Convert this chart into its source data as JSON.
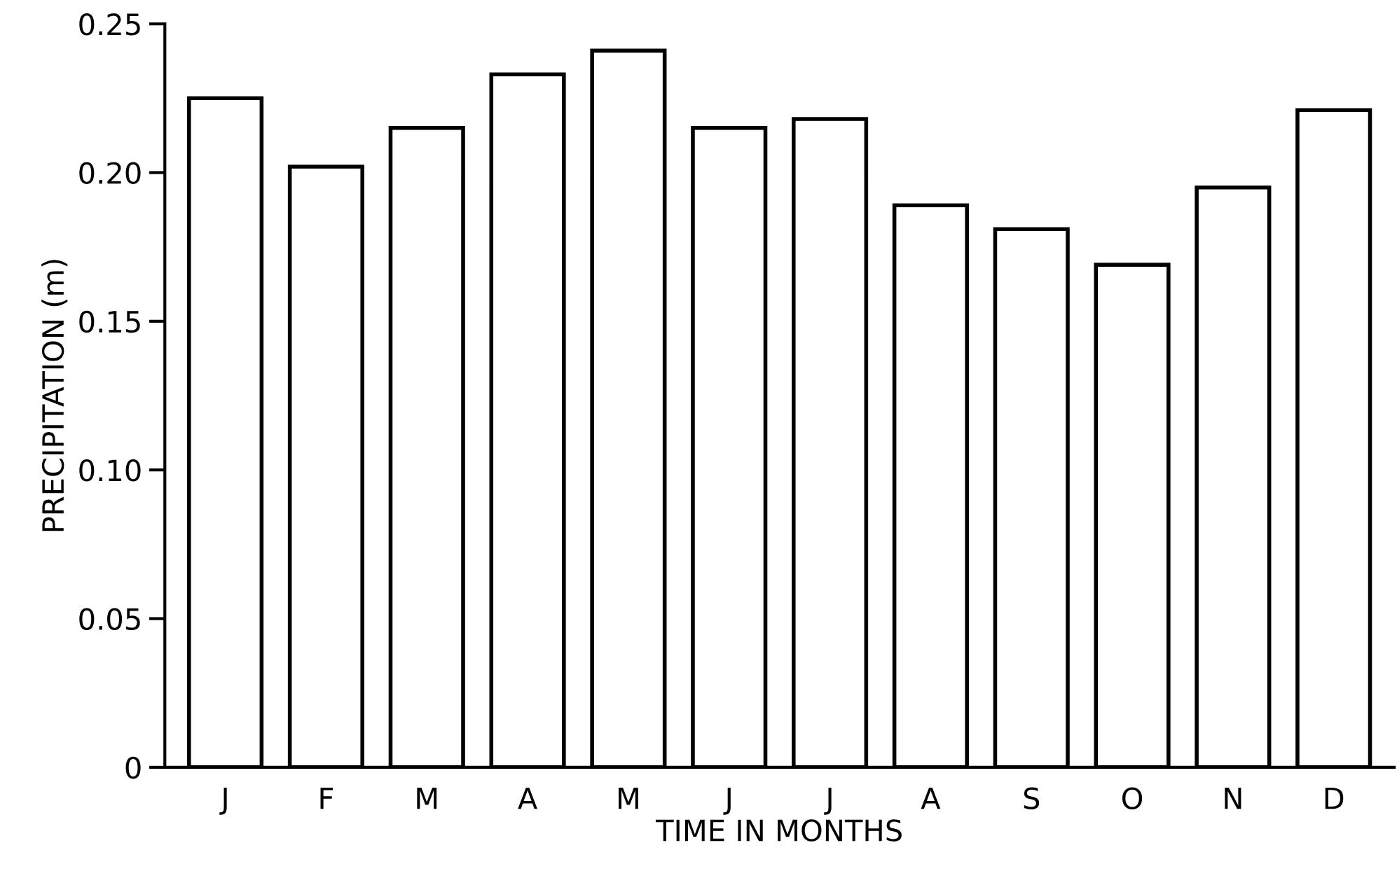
{
  "chart_data": {
    "type": "bar",
    "xlabel": "TIME IN MONTHS",
    "ylabel": "PRECIPITATION (m)",
    "categories": [
      "J",
      "F",
      "M",
      "A",
      "M",
      "J",
      "J",
      "A",
      "S",
      "O",
      "N",
      "D"
    ],
    "values": [
      0.225,
      0.202,
      0.215,
      0.233,
      0.241,
      0.215,
      0.218,
      0.189,
      0.181,
      0.169,
      0.195,
      0.221
    ],
    "color": "#ffffff",
    "ylim": [
      0,
      0.25
    ],
    "yticks": [
      {
        "value": 0,
        "label": "0"
      },
      {
        "value": 0.05,
        "label": "0.05"
      },
      {
        "value": 0.1,
        "label": "0.10"
      },
      {
        "value": 0.15,
        "label": "0.15"
      },
      {
        "value": 0.2,
        "label": "0.20"
      },
      {
        "value": 0.25,
        "label": "0.25"
      }
    ],
    "grid": false
  }
}
